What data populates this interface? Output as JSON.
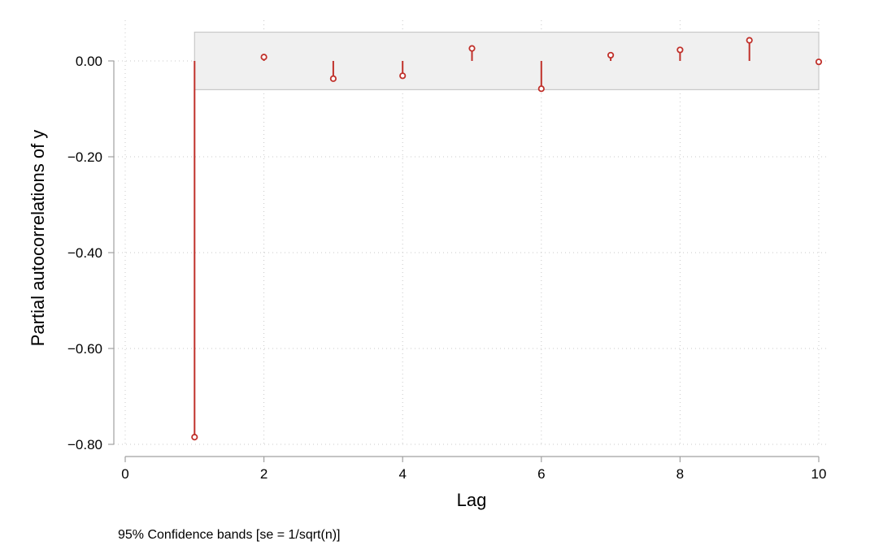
{
  "chart_data": {
    "type": "stem",
    "ylabel": "Partial autocorrelations of y",
    "xlabel": "Lag",
    "note": "95% Confidence bands [se = 1/sqrt(n)]",
    "x": [
      1,
      2,
      3,
      4,
      5,
      6,
      7,
      8,
      9,
      10
    ],
    "values": [
      -0.785,
      0.008,
      -0.037,
      -0.031,
      0.026,
      -0.058,
      0.012,
      0.023,
      0.043,
      -0.002
    ],
    "confidence_band": [
      -0.06,
      0.06
    ],
    "xlim": [
      0,
      10
    ],
    "ylim": [
      -0.8,
      0.0
    ],
    "xticks": [
      0,
      2,
      4,
      6,
      8,
      10
    ],
    "xtick_labels": [
      "0",
      "2",
      "4",
      "6",
      "8",
      "10"
    ],
    "yticks": [
      0.0,
      -0.2,
      -0.4,
      -0.6,
      -0.8
    ],
    "ytick_labels": [
      "0.00",
      "−0.20",
      "−0.40",
      "−0.60",
      "−0.80"
    ],
    "grid": "dotted",
    "colors": {
      "series": "#c0312b",
      "band_fill": "#f0f0f0",
      "band_stroke": "#c8c8c8",
      "grid": "#c8c8c8",
      "axis": "#a0a0a0"
    }
  }
}
